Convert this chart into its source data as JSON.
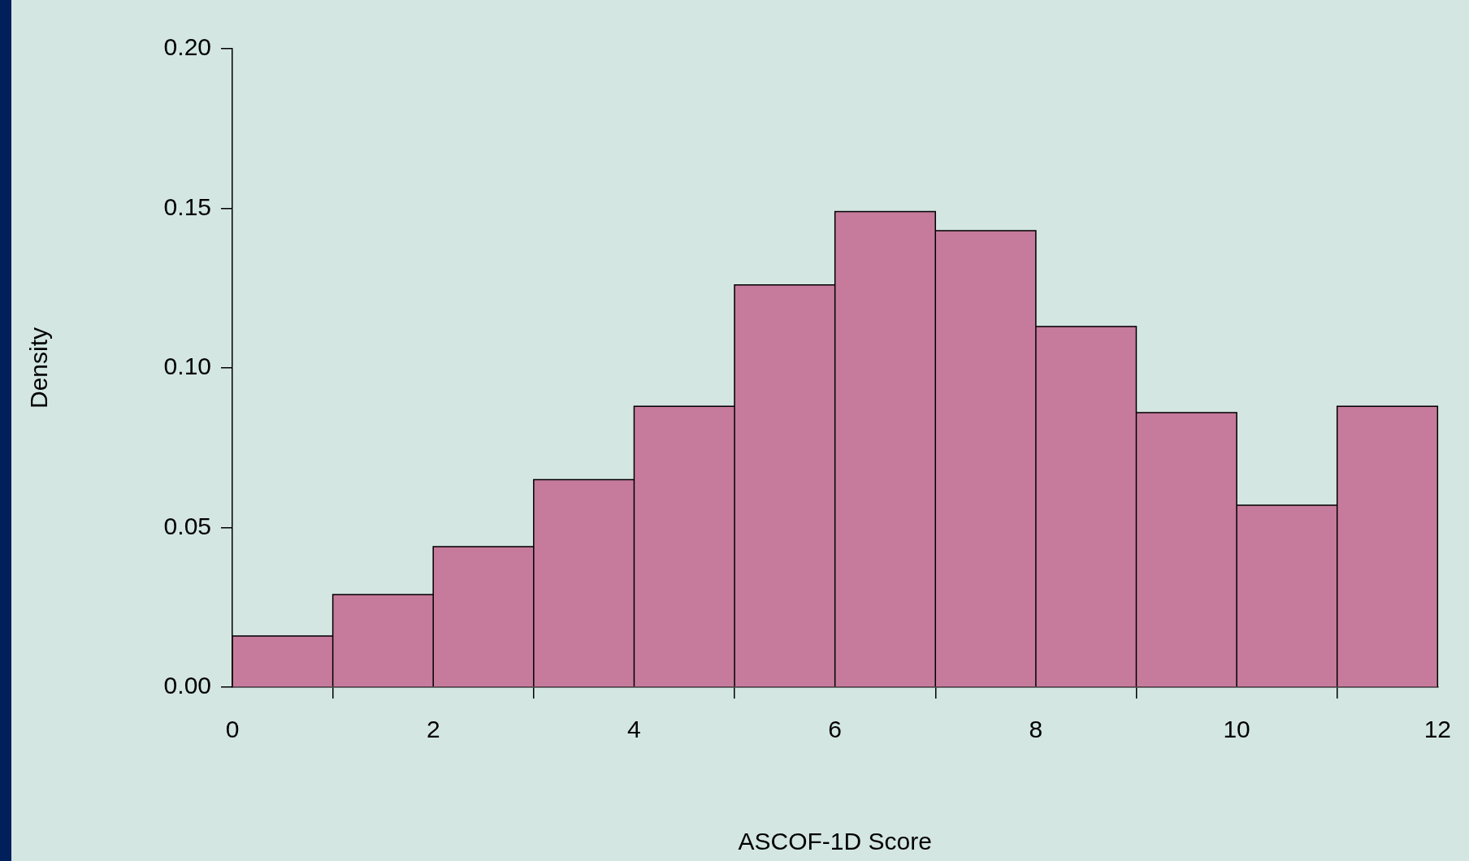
{
  "chart_data": {
    "type": "histogram",
    "xlabel": "ASCOF-1D Score",
    "ylabel": "Density",
    "bins": [
      0,
      1,
      2,
      3,
      4,
      5,
      6,
      7,
      8,
      9,
      10,
      11,
      12
    ],
    "values": [
      0.016,
      0.029,
      0.044,
      0.065,
      0.088,
      0.126,
      0.149,
      0.143,
      0.113,
      0.086,
      0.057,
      0.088
    ],
    "color": "#c67b9c",
    "xlim": [
      0,
      12
    ],
    "xticks": [
      0,
      2,
      4,
      6,
      8,
      10,
      12
    ],
    "ylim": [
      0,
      0.2
    ],
    "yticks": [
      {
        "value": 0,
        "label": "0.00"
      },
      {
        "value": 0.05,
        "label": "0.05"
      },
      {
        "value": 0.1,
        "label": "0.10"
      },
      {
        "value": 0.15,
        "label": "0.15"
      },
      {
        "value": 0.2,
        "label": "0.20"
      }
    ],
    "grid": false,
    "legend": false
  }
}
